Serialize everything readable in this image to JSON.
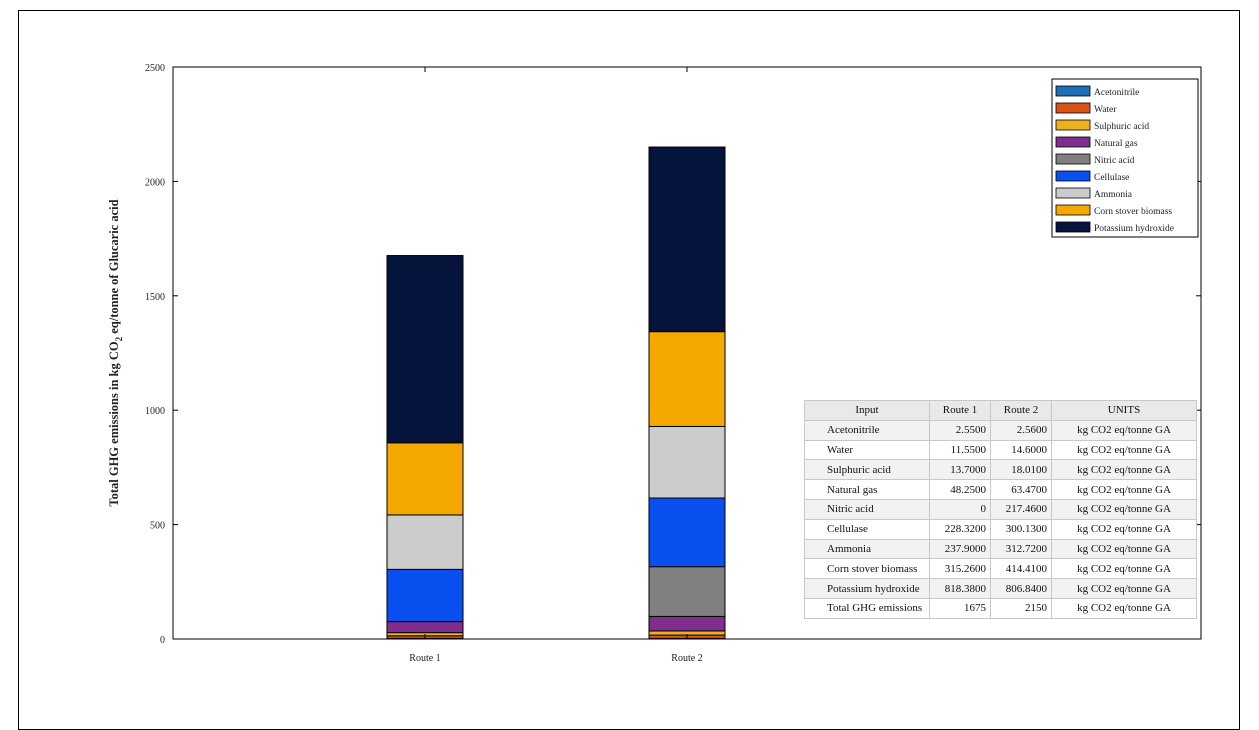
{
  "chart_data": {
    "type": "bar",
    "stacked": true,
    "categories": [
      "Route 1",
      "Route 2"
    ],
    "ylabel": "Total GHG emissions in kg CO",
    "ylabel_subscript": "2",
    "ylabel_suffix": " eq/tonne of Glucaric acid",
    "ylim": [
      0,
      2500
    ],
    "yticks": [
      0,
      500,
      1000,
      1500,
      2000,
      2500
    ],
    "ytick_labels": [
      "0",
      "500",
      "1000",
      "1500",
      "2000",
      "2500"
    ],
    "legend_position": "top-right",
    "series": [
      {
        "name": "Acetonitrile",
        "color": "#1f6fb5",
        "values": [
          2.55,
          2.56
        ]
      },
      {
        "name": "Water",
        "color": "#d95319",
        "values": [
          11.55,
          14.6
        ]
      },
      {
        "name": "Sulphuric acid",
        "color": "#edb120",
        "values": [
          13.7,
          18.01
        ]
      },
      {
        "name": "Natural gas",
        "color": "#7e2f8e",
        "values": [
          48.25,
          63.47
        ]
      },
      {
        "name": "Nitric acid",
        "color": "#808080",
        "values": [
          0,
          217.46
        ]
      },
      {
        "name": "Cellulase",
        "color": "#0a4ff0",
        "values": [
          228.32,
          300.13
        ]
      },
      {
        "name": "Ammonia",
        "color": "#cccccc",
        "values": [
          237.9,
          312.72
        ]
      },
      {
        "name": "Corn stover biomass",
        "color": "#f5a800",
        "values": [
          315.26,
          414.41
        ]
      },
      {
        "name": "Potassium hydroxide",
        "color": "#04143c",
        "values": [
          818.38,
          806.84
        ]
      }
    ]
  },
  "table": {
    "headers": [
      "Input",
      "Route 1",
      "Route 2",
      "UNITS"
    ],
    "rows": [
      [
        "Acetonitrile",
        "2.5500",
        "2.5600",
        "kg CO2 eq/tonne GA"
      ],
      [
        "Water",
        "11.5500",
        "14.6000",
        "kg CO2 eq/tonne GA"
      ],
      [
        "Sulphuric acid",
        "13.7000",
        "18.0100",
        "kg CO2 eq/tonne GA"
      ],
      [
        "Natural gas",
        "48.2500",
        "63.4700",
        "kg CO2 eq/tonne GA"
      ],
      [
        "Nitric acid",
        "0",
        "217.4600",
        "kg CO2 eq/tonne GA"
      ],
      [
        "Cellulase",
        "228.3200",
        "300.1300",
        "kg CO2 eq/tonne GA"
      ],
      [
        "Ammonia",
        "237.9000",
        "312.7200",
        "kg CO2 eq/tonne GA"
      ],
      [
        "Corn stover biomass",
        "315.2600",
        "414.4100",
        "kg CO2 eq/tonne GA"
      ],
      [
        "Potassium hydroxide",
        "818.3800",
        "806.8400",
        "kg CO2 eq/tonne GA"
      ],
      [
        "Total GHG emissions",
        "1675",
        "2150",
        "kg CO2 eq/tonne GA"
      ]
    ]
  }
}
